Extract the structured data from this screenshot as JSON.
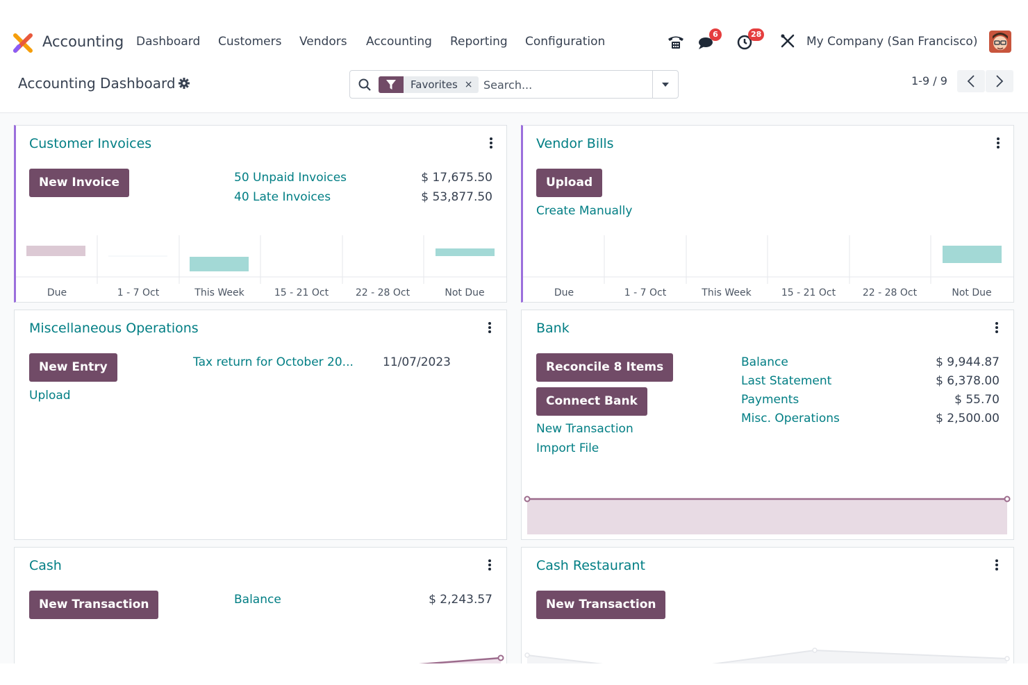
{
  "navbar": {
    "app_name": "Accounting",
    "menu": [
      "Dashboard",
      "Customers",
      "Vendors",
      "Accounting",
      "Reporting",
      "Configuration"
    ],
    "messages_count": "6",
    "activities_count": "28",
    "company": "My Company (San Francisco)"
  },
  "control_panel": {
    "title": "Accounting Dashboard",
    "facet_label": "Favorites",
    "facet_remove": "×",
    "search_placeholder": "Search...",
    "pager": "1-9 / 9"
  },
  "cards": {
    "customer_invoices": {
      "title": "Customer Invoices",
      "button": "New Invoice",
      "stats": [
        {
          "label": "50 Unpaid Invoices",
          "amount": "$ 17,675.50"
        },
        {
          "label": "40 Late Invoices",
          "amount": "$ 53,877.50"
        }
      ],
      "chart_ticks": [
        "Due",
        "1 - 7 Oct",
        "This Week",
        "15 - 21 Oct",
        "22 - 28 Oct",
        "Not Due"
      ]
    },
    "vendor_bills": {
      "title": "Vendor Bills",
      "button": "Upload",
      "link": "Create Manually",
      "chart_ticks": [
        "Due",
        "1 - 7 Oct",
        "This Week",
        "15 - 21 Oct",
        "22 - 28 Oct",
        "Not Due"
      ]
    },
    "misc_operations": {
      "title": "Miscellaneous Operations",
      "button": "New Entry",
      "link": "Upload",
      "entry_label": "Tax return for October 20...",
      "entry_date": "11/07/2023"
    },
    "bank": {
      "title": "Bank",
      "button_reconcile": "Reconcile 8 Items",
      "button_connect": "Connect Bank",
      "links": [
        "New Transaction",
        "Import File"
      ],
      "stats": [
        {
          "label": "Balance",
          "amount": "$ 9,944.87"
        },
        {
          "label": "Last Statement",
          "amount": "$ 6,378.00"
        },
        {
          "label": "Payments",
          "amount": "$ 55.70"
        },
        {
          "label": "Misc. Operations",
          "amount": "$ 2,500.00"
        }
      ]
    },
    "cash": {
      "title": "Cash",
      "button": "New Transaction",
      "stat_label": "Balance",
      "stat_amount": "$ 2,243.57"
    },
    "cash_restaurant": {
      "title": "Cash Restaurant",
      "button": "New Transaction"
    }
  },
  "colors": {
    "primary": "#714b67",
    "link": "#017e84",
    "accent_border": "#9b6fdc",
    "bar_past": "#dcc9d4",
    "bar_future": "#a3d9d6",
    "badge": "#e53e3e"
  }
}
